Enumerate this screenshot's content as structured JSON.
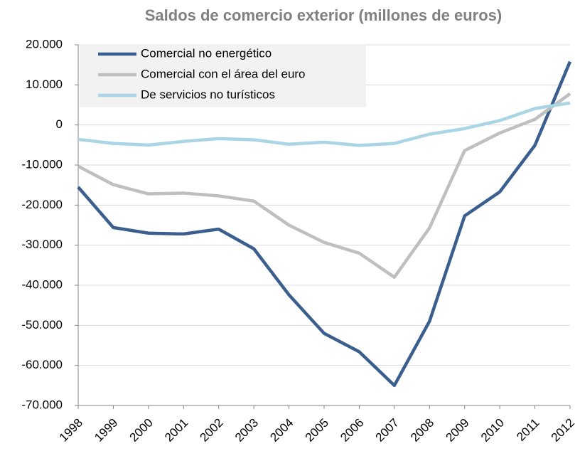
{
  "chart_data": {
    "type": "line",
    "title": "Saldos de comercio exterior (millones de euros)",
    "categories": [
      "1998",
      "1999",
      "2000",
      "2001",
      "2002",
      "2003",
      "2004",
      "2005",
      "2006",
      "2007",
      "2008",
      "2009",
      "2010",
      "2011",
      "2012"
    ],
    "series": [
      {
        "name": "Comercial no energético",
        "color": "#3a5f8f",
        "values": [
          -15500,
          -25600,
          -27000,
          -27200,
          -26000,
          -30900,
          -42400,
          -52000,
          -56600,
          -65000,
          -49000,
          -22700,
          -16700,
          -5100,
          15800
        ]
      },
      {
        "name": "Comercial con el área del euro",
        "color": "#bfbfbf",
        "values": [
          -10300,
          -14900,
          -17200,
          -17000,
          -17700,
          -19000,
          -25000,
          -29300,
          -32000,
          -38000,
          -25700,
          -6400,
          -2000,
          1400,
          7800
        ]
      },
      {
        "name": "De servicios no turísticos",
        "color": "#a9d5e5",
        "values": [
          -3600,
          -4600,
          -5000,
          -4100,
          -3400,
          -3700,
          -4800,
          -4300,
          -5100,
          -4600,
          -2300,
          -900,
          1100,
          4100,
          5500
        ]
      }
    ],
    "ylim": [
      -70000,
      20000
    ],
    "yticks": [
      {
        "value": -70000,
        "label": "-70.000"
      },
      {
        "value": -60000,
        "label": "-60.000"
      },
      {
        "value": -50000,
        "label": "-50.000"
      },
      {
        "value": -40000,
        "label": "-40.000"
      },
      {
        "value": -30000,
        "label": "-30.000"
      },
      {
        "value": -20000,
        "label": "-20.000"
      },
      {
        "value": -10000,
        "label": "-10.000"
      },
      0,
      {
        "value": 10000,
        "label": "10.000"
      },
      {
        "value": 20000,
        "label": "20.000"
      }
    ],
    "grid": true
  }
}
